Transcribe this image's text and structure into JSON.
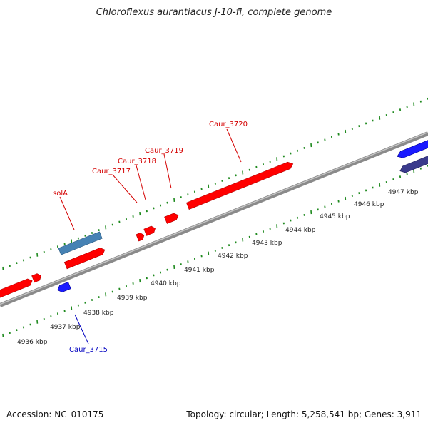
{
  "title": "Chloroflexus aurantiacus J-10-fl, complete genome",
  "footer": {
    "accession": "Accession: NC_010175",
    "summary": "Topology: circular; Length: 5,258,541 bp; Genes: 3,911"
  },
  "colors": {
    "forward_cds": "#ff0000",
    "reverse_cds": "#1a1aff",
    "rna": "#4682b4",
    "pseudo": "#3a3a8c",
    "backbone": "#8c8c8c",
    "ticks": "#1f8a1f",
    "label_forward": "#d40000",
    "label_reverse": "#0000c0"
  },
  "kbp_labels": [
    "4936 kbp",
    "4937 kbp",
    "4938 kbp",
    "4939 kbp",
    "4940 kbp",
    "4941 kbp",
    "4942 kbp",
    "4943 kbp",
    "4944 kbp",
    "4945 kbp",
    "4946 kbp",
    "4947 kbp"
  ],
  "gene_labels": {
    "caur_3720": "Caur_3720",
    "caur_3719": "Caur_3719",
    "caur_3718": "Caur_3718",
    "caur_3717": "Caur_3717",
    "sola": "solA",
    "caur_3715": "Caur_3715"
  }
}
